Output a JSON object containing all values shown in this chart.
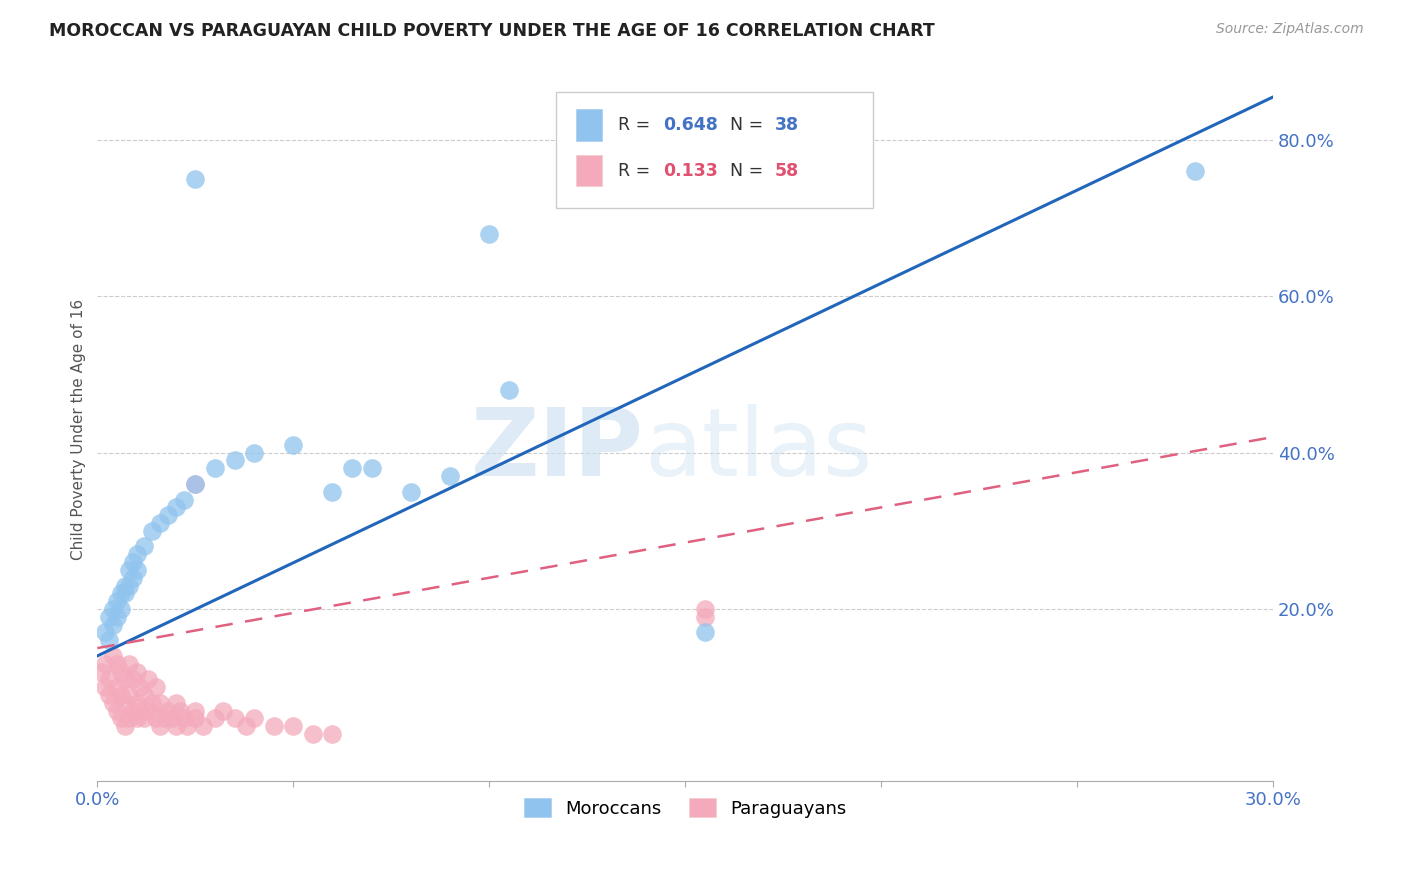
{
  "title": "MOROCCAN VS PARAGUAYAN CHILD POVERTY UNDER THE AGE OF 16 CORRELATION CHART",
  "source_text": "Source: ZipAtlas.com",
  "ylabel": "Child Poverty Under the Age of 16",
  "xlim": [
    0.0,
    0.3
  ],
  "ylim": [
    -0.02,
    0.88
  ],
  "moroccan_R": 0.648,
  "moroccan_N": 38,
  "paraguayan_R": 0.133,
  "paraguayan_N": 58,
  "moroccan_color": "#90C4EE",
  "moroccan_line_color": "#2266BB",
  "paraguayan_color": "#F4AABB",
  "paraguayan_line_color": "#E06080",
  "moroccan_x": [
    0.002,
    0.003,
    0.004,
    0.005,
    0.006,
    0.007,
    0.008,
    0.009,
    0.01,
    0.012,
    0.014,
    0.016,
    0.018,
    0.02,
    0.022,
    0.025,
    0.03,
    0.035,
    0.04,
    0.05,
    0.06,
    0.065,
    0.07,
    0.08,
    0.09,
    0.1,
    0.105,
    0.025,
    0.155,
    0.28,
    0.003,
    0.004,
    0.005,
    0.006,
    0.007,
    0.008,
    0.009,
    0.01
  ],
  "moroccan_y": [
    0.17,
    0.19,
    0.2,
    0.21,
    0.22,
    0.23,
    0.25,
    0.26,
    0.27,
    0.28,
    0.3,
    0.31,
    0.32,
    0.33,
    0.34,
    0.36,
    0.38,
    0.39,
    0.4,
    0.41,
    0.35,
    0.38,
    0.38,
    0.35,
    0.37,
    0.68,
    0.48,
    0.75,
    0.17,
    0.76,
    0.16,
    0.18,
    0.19,
    0.2,
    0.22,
    0.23,
    0.24,
    0.25
  ],
  "paraguayan_x": [
    0.001,
    0.002,
    0.002,
    0.003,
    0.003,
    0.004,
    0.004,
    0.005,
    0.005,
    0.005,
    0.006,
    0.006,
    0.006,
    0.007,
    0.007,
    0.007,
    0.008,
    0.008,
    0.008,
    0.009,
    0.009,
    0.01,
    0.01,
    0.01,
    0.011,
    0.011,
    0.012,
    0.012,
    0.013,
    0.013,
    0.014,
    0.015,
    0.015,
    0.016,
    0.016,
    0.017,
    0.018,
    0.019,
    0.02,
    0.02,
    0.021,
    0.022,
    0.023,
    0.025,
    0.025,
    0.027,
    0.03,
    0.032,
    0.035,
    0.038,
    0.04,
    0.045,
    0.05,
    0.055,
    0.06,
    0.155,
    0.155,
    0.025
  ],
  "paraguayan_y": [
    0.12,
    0.1,
    0.13,
    0.09,
    0.11,
    0.08,
    0.14,
    0.07,
    0.1,
    0.13,
    0.06,
    0.09,
    0.12,
    0.05,
    0.08,
    0.11,
    0.06,
    0.09,
    0.13,
    0.07,
    0.11,
    0.06,
    0.08,
    0.12,
    0.07,
    0.1,
    0.06,
    0.09,
    0.07,
    0.11,
    0.08,
    0.06,
    0.1,
    0.05,
    0.08,
    0.06,
    0.07,
    0.06,
    0.05,
    0.08,
    0.07,
    0.06,
    0.05,
    0.06,
    0.07,
    0.05,
    0.06,
    0.07,
    0.06,
    0.05,
    0.06,
    0.05,
    0.05,
    0.04,
    0.04,
    0.2,
    0.19,
    0.36
  ],
  "blue_line_x0": 0.0,
  "blue_line_y0": 0.14,
  "blue_line_x1": 0.3,
  "blue_line_y1": 0.855,
  "pink_line_x0": 0.0,
  "pink_line_y0": 0.15,
  "pink_line_x1": 0.3,
  "pink_line_y1": 0.42
}
